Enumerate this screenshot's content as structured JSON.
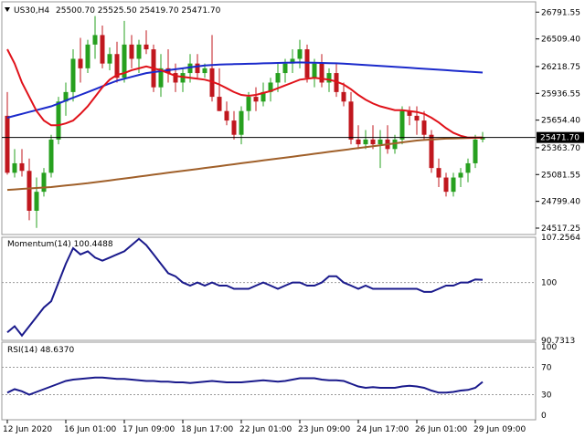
{
  "header": {
    "symbol": "US30,H4",
    "ohlc": "25500.70 25525.50 25419.70 25471.70",
    "triangle": "triangle-down-icon"
  },
  "colors": {
    "bull": "#27a01f",
    "bear": "#c0171e",
    "ema20": "#e0121a",
    "ema50": "#1b2acb",
    "ema200": "#a0602a",
    "osc": "#1a1a8c",
    "grid": "#9a9a9a"
  },
  "chart_data": [
    {
      "type": "candlestick",
      "title": "US30,H4",
      "ylim": [
        24450,
        26900
      ],
      "y_ticks": [
        "26791.55",
        "26509.40",
        "26218.75",
        "25936.55",
        "25654.40",
        "25363.70",
        "25081.55",
        "24799.40",
        "24517.25"
      ],
      "current_price_label": "25471.70",
      "current_price": 25471.7,
      "x_labels": [
        "12 Jun 2020",
        "16 Jun 01:00",
        "17 Jun 09:00",
        "18 Jun 17:00",
        "22 Jun 01:00",
        "23 Jun 09:00",
        "24 Jun 17:00",
        "26 Jun 01:00",
        "29 Jun 09:00"
      ],
      "x_label_index": [
        0,
        8,
        16,
        24,
        32,
        40,
        48,
        56,
        64
      ],
      "candles": [
        [
          25700,
          25950,
          25080,
          25100
        ],
        [
          25100,
          25350,
          25050,
          25200
        ],
        [
          25200,
          25350,
          25060,
          25120
        ],
        [
          25120,
          25250,
          24600,
          24700
        ],
        [
          24700,
          25050,
          24520,
          24900
        ],
        [
          24900,
          25150,
          24850,
          25100
        ],
        [
          25100,
          25500,
          25050,
          25450
        ],
        [
          25450,
          25900,
          25400,
          25850
        ],
        [
          25850,
          26050,
          25700,
          25950
        ],
        [
          25950,
          26400,
          25850,
          26300
        ],
        [
          26300,
          26520,
          26050,
          26200
        ],
        [
          26200,
          26500,
          26150,
          26450
        ],
        [
          26450,
          26750,
          26300,
          26550
        ],
        [
          26550,
          26650,
          26200,
          26250
        ],
        [
          26250,
          26420,
          26180,
          26350
        ],
        [
          26350,
          26480,
          26050,
          26100
        ],
        [
          26100,
          26700,
          26050,
          26450
        ],
        [
          26450,
          26550,
          26200,
          26300
        ],
        [
          26300,
          26500,
          26150,
          26450
        ],
        [
          26450,
          26600,
          26350,
          26400
        ],
        [
          26400,
          26450,
          25950,
          26000
        ],
        [
          26000,
          26350,
          25900,
          26200
        ],
        [
          26200,
          26400,
          26050,
          26150
        ],
        [
          26150,
          26250,
          25950,
          26050
        ],
        [
          26050,
          26200,
          25950,
          26150
        ],
        [
          26150,
          26350,
          26050,
          26250
        ],
        [
          26250,
          26350,
          26100,
          26150
        ],
        [
          26150,
          26250,
          26100,
          26200
        ],
        [
          26200,
          26550,
          25850,
          25900
        ],
        [
          25900,
          26200,
          25750,
          25750
        ],
        [
          25750,
          25850,
          25600,
          25650
        ],
        [
          25650,
          25750,
          25450,
          25500
        ],
        [
          25500,
          25800,
          25400,
          25750
        ],
        [
          25750,
          25950,
          25650,
          25900
        ],
        [
          25900,
          26000,
          25750,
          25850
        ],
        [
          25850,
          26050,
          25800,
          25950
        ],
        [
          25950,
          26100,
          25850,
          26050
        ],
        [
          26050,
          26250,
          25950,
          26150
        ],
        [
          26150,
          26300,
          26050,
          26250
        ],
        [
          26250,
          26400,
          26150,
          26300
        ],
        [
          26300,
          26500,
          26200,
          26400
        ],
        [
          26400,
          26450,
          26050,
          26100
        ],
        [
          26100,
          26300,
          26000,
          26250
        ],
        [
          26250,
          26350,
          26000,
          26050
        ],
        [
          26050,
          26200,
          25950,
          26150
        ],
        [
          26150,
          26250,
          25900,
          25950
        ],
        [
          25950,
          26050,
          25800,
          25850
        ],
        [
          25850,
          25950,
          25400,
          25450
        ],
        [
          25450,
          25600,
          25350,
          25400
        ],
        [
          25400,
          25550,
          25350,
          25450
        ],
        [
          25450,
          25600,
          25350,
          25400
        ],
        [
          25400,
          25550,
          25150,
          25450
        ],
        [
          25450,
          25600,
          25300,
          25350
        ],
        [
          25350,
          25500,
          25300,
          25450
        ],
        [
          25450,
          25800,
          25400,
          25750
        ],
        [
          25750,
          25800,
          25600,
          25700
        ],
        [
          25700,
          25800,
          25500,
          25650
        ],
        [
          25650,
          25750,
          25450,
          25500
        ],
        [
          25500,
          25550,
          25100,
          25150
        ],
        [
          25150,
          25250,
          24950,
          25050
        ],
        [
          25050,
          25100,
          24850,
          24900
        ],
        [
          24900,
          25100,
          24850,
          25050
        ],
        [
          25050,
          25150,
          24950,
          25100
        ],
        [
          25100,
          25250,
          25000,
          25200
        ],
        [
          25200,
          25500,
          25150,
          25450
        ],
        [
          25450,
          25530,
          25420,
          25472
        ]
      ],
      "ema20": [
        26400,
        26250,
        26050,
        25900,
        25750,
        25650,
        25600,
        25600,
        25620,
        25650,
        25720,
        25800,
        25900,
        26000,
        26080,
        26130,
        26150,
        26180,
        26200,
        26220,
        26200,
        26180,
        26150,
        26120,
        26110,
        26100,
        26090,
        26080,
        26060,
        26030,
        25990,
        25950,
        25920,
        25910,
        25920,
        25940,
        25960,
        25990,
        26020,
        26050,
        26080,
        26090,
        26100,
        26090,
        26080,
        26060,
        26030,
        25980,
        25920,
        25870,
        25830,
        25800,
        25780,
        25760,
        25760,
        25750,
        25740,
        25720,
        25680,
        25630,
        25570,
        25520,
        25490,
        25470,
        25470,
        25470
      ],
      "ema50": [
        25680,
        25700,
        25720,
        25740,
        25760,
        25780,
        25800,
        25830,
        25860,
        25890,
        25920,
        25950,
        25980,
        26010,
        26040,
        26070,
        26090,
        26110,
        26130,
        26150,
        26160,
        26170,
        26180,
        26190,
        26200,
        26210,
        26220,
        26230,
        26235,
        26240,
        26242,
        26244,
        26246,
        26248,
        26250,
        26252,
        26254,
        26256,
        26258,
        26260,
        26262,
        26260,
        26258,
        26256,
        26254,
        26252,
        26250,
        26245,
        26240,
        26235,
        26230,
        26225,
        26220,
        26215,
        26210,
        26205,
        26200,
        26195,
        26190,
        26185,
        26180,
        26175,
        26170,
        26165,
        26160,
        26155
      ],
      "ema200": [
        24920,
        24925,
        24930,
        24935,
        24940,
        24945,
        24950,
        24958,
        24966,
        24974,
        24982,
        24990,
        25000,
        25010,
        25020,
        25030,
        25040,
        25050,
        25060,
        25070,
        25080,
        25090,
        25100,
        25110,
        25120,
        25130,
        25140,
        25150,
        25160,
        25170,
        25180,
        25190,
        25200,
        25210,
        25220,
        25230,
        25240,
        25250,
        25260,
        25270,
        25280,
        25290,
        25300,
        25310,
        25320,
        25330,
        25340,
        25350,
        25360,
        25370,
        25380,
        25390,
        25400,
        25410,
        25420,
        25430,
        25440,
        25445,
        25450,
        25455,
        25460,
        25462,
        25464,
        25466,
        25468,
        25470
      ]
    },
    {
      "type": "line",
      "title": "Momentum(14) 100.4488",
      "ylim": [
        90.7313,
        107.2564
      ],
      "y_ticks": [
        "107.2564",
        "100",
        "90.7313"
      ],
      "series": [
        {
          "name": "Momentum(14)",
          "values": [
            92,
            93,
            91.5,
            93,
            94.5,
            96,
            97,
            100,
            103,
            105.5,
            104.5,
            105,
            104,
            103.5,
            104,
            104.5,
            105,
            106,
            107,
            106,
            104.5,
            103,
            101.5,
            101,
            100,
            99.5,
            100,
            99.5,
            100,
            99.5,
            99.5,
            99,
            99,
            99,
            99.5,
            100,
            99.5,
            99,
            99.5,
            100,
            100,
            99.5,
            99.5,
            100,
            101,
            101,
            100,
            99.5,
            99,
            99.5,
            99,
            99,
            99,
            99,
            99,
            99,
            99,
            98.5,
            98.5,
            99,
            99.5,
            99.5,
            100,
            100,
            100.5,
            100.4488
          ]
        }
      ]
    },
    {
      "type": "line",
      "title": "RSI(14) 48.6370",
      "ylim": [
        0,
        100
      ],
      "y_ticks": [
        "100",
        "70",
        "30",
        "0"
      ],
      "series": [
        {
          "name": "RSI(14)",
          "values": [
            33,
            38,
            35,
            30,
            34,
            38,
            42,
            46,
            50,
            52,
            53,
            54,
            55,
            55,
            54,
            53,
            53,
            52,
            51,
            50,
            50,
            49,
            49,
            48,
            48,
            47,
            48,
            49,
            50,
            49,
            48,
            48,
            48,
            49,
            50,
            51,
            50,
            49,
            50,
            52,
            54,
            54,
            54,
            52,
            51,
            51,
            50,
            46,
            42,
            40,
            41,
            40,
            40,
            40,
            42,
            43,
            42,
            40,
            36,
            33,
            33,
            34,
            36,
            37,
            40,
            48.637
          ]
        }
      ]
    }
  ]
}
